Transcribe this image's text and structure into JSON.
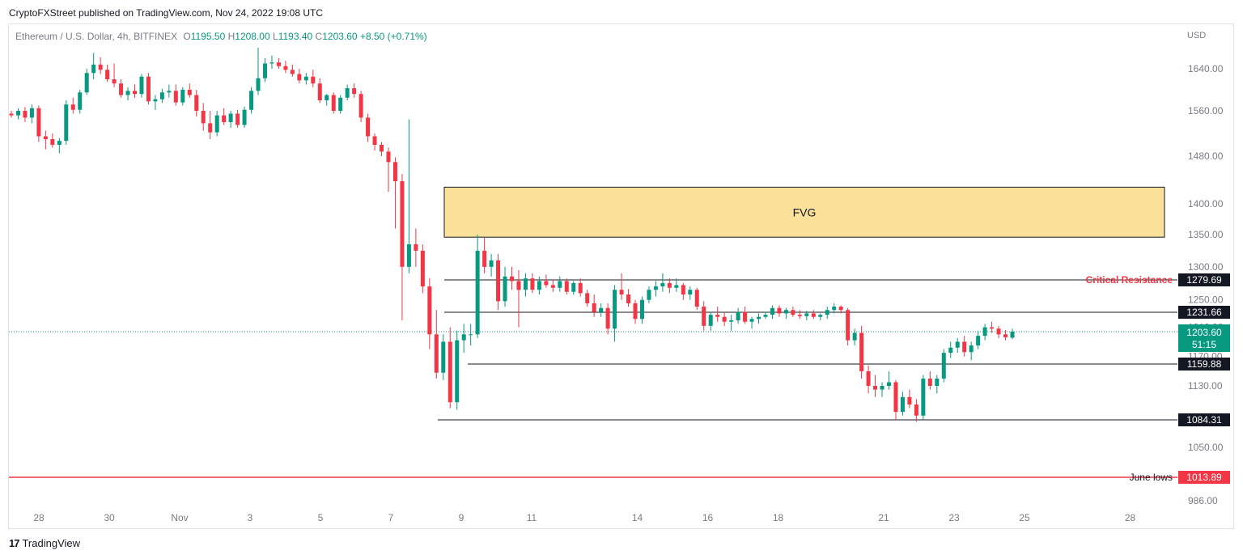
{
  "header": {
    "publisher": "CryptoFXStreet published on TradingView.com, Nov 24, 2022 19:08 UTC"
  },
  "legend": {
    "symbol": "Ethereum / U.S. Dollar, 4h, BITFINEX",
    "o_label": "O",
    "o": "1195.50",
    "h_label": "H",
    "h": "1208.00",
    "l_label": "L",
    "l": "1193.40",
    "c_label": "C",
    "c": "1203.60",
    "change": "+8.50 (+0.71%)"
  },
  "footer": {
    "logo_mark": "17",
    "brand": "TradingView"
  },
  "colors": {
    "up": "#089981",
    "down": "#f23645",
    "fvg_fill": "#fce19a",
    "line": "#131722",
    "june": "#f23645",
    "axis_text": "#787b86"
  },
  "chart_data": {
    "type": "candlestick",
    "currency_label": "USD",
    "y_ticks": [
      "1640.00",
      "1560.00",
      "1480.00",
      "1400.00",
      "1350.00",
      "1300.00",
      "1250.00",
      "1210.00",
      "1170.00",
      "1130.00",
      "1050.00",
      "986.00"
    ],
    "x_ticks": [
      {
        "label": "28",
        "day": 0
      },
      {
        "label": "30",
        "day": 2
      },
      {
        "label": "Nov",
        "day": 4
      },
      {
        "label": "3",
        "day": 6
      },
      {
        "label": "5",
        "day": 8
      },
      {
        "label": "7",
        "day": 10
      },
      {
        "label": "9",
        "day": 12
      },
      {
        "label": "11",
        "day": 14
      },
      {
        "label": "14",
        "day": 17
      },
      {
        "label": "16",
        "day": 19
      },
      {
        "label": "18",
        "day": 21
      },
      {
        "label": "21",
        "day": 24
      },
      {
        "label": "23",
        "day": 26
      },
      {
        "label": "25",
        "day": 28
      },
      {
        "label": "28",
        "day": 31
      }
    ],
    "fvg": {
      "label": "FVG",
      "top": 1428,
      "bottom": 1346
    },
    "levels": [
      {
        "value": "1279.69",
        "annotation": "Critical Resistance",
        "style": "black",
        "anno_color": "#f23645"
      },
      {
        "value": "1231.66",
        "annotation": "",
        "style": "black"
      },
      {
        "value": "1159.88",
        "annotation": "",
        "style": "black"
      },
      {
        "value": "1084.31",
        "annotation": "",
        "style": "black"
      },
      {
        "value": "1013.89",
        "annotation": "June lows",
        "style": "red",
        "anno_color": "#131722"
      }
    ],
    "current": {
      "price": "1203.60",
      "countdown": "51:15"
    },
    "candles": [
      [
        1555,
        1560,
        1548,
        1552
      ],
      [
        1552,
        1565,
        1545,
        1560
      ],
      [
        1560,
        1567,
        1540,
        1548
      ],
      [
        1548,
        1572,
        1538,
        1565
      ],
      [
        1565,
        1570,
        1505,
        1515
      ],
      [
        1515,
        1525,
        1492,
        1510
      ],
      [
        1510,
        1520,
        1495,
        1500
      ],
      [
        1500,
        1512,
        1485,
        1507
      ],
      [
        1507,
        1580,
        1500,
        1572
      ],
      [
        1572,
        1585,
        1555,
        1562
      ],
      [
        1562,
        1600,
        1555,
        1595
      ],
      [
        1595,
        1640,
        1590,
        1632
      ],
      [
        1632,
        1670,
        1620,
        1648
      ],
      [
        1648,
        1662,
        1630,
        1638
      ],
      [
        1638,
        1648,
        1615,
        1620
      ],
      [
        1620,
        1650,
        1605,
        1612
      ],
      [
        1612,
        1620,
        1585,
        1590
      ],
      [
        1590,
        1605,
        1580,
        1598
      ],
      [
        1598,
        1610,
        1585,
        1592
      ],
      [
        1592,
        1630,
        1585,
        1625
      ],
      [
        1625,
        1632,
        1572,
        1578
      ],
      [
        1578,
        1590,
        1562,
        1582
      ],
      [
        1582,
        1602,
        1575,
        1595
      ],
      [
        1595,
        1610,
        1585,
        1598
      ],
      [
        1598,
        1610,
        1570,
        1576
      ],
      [
        1576,
        1605,
        1570,
        1600
      ],
      [
        1600,
        1612,
        1585,
        1590
      ],
      [
        1590,
        1600,
        1550,
        1560
      ],
      [
        1560,
        1575,
        1525,
        1538
      ],
      [
        1538,
        1560,
        1510,
        1522
      ],
      [
        1522,
        1560,
        1515,
        1552
      ],
      [
        1552,
        1565,
        1535,
        1540
      ],
      [
        1540,
        1560,
        1530,
        1555
      ],
      [
        1555,
        1562,
        1530,
        1535
      ],
      [
        1535,
        1568,
        1530,
        1562
      ],
      [
        1562,
        1605,
        1555,
        1598
      ],
      [
        1598,
        1680,
        1590,
        1622
      ],
      [
        1622,
        1660,
        1615,
        1650
      ],
      [
        1650,
        1665,
        1640,
        1652
      ],
      [
        1652,
        1660,
        1640,
        1645
      ],
      [
        1645,
        1655,
        1632,
        1638
      ],
      [
        1638,
        1648,
        1625,
        1630
      ],
      [
        1630,
        1640,
        1612,
        1618
      ],
      [
        1618,
        1632,
        1610,
        1625
      ],
      [
        1625,
        1638,
        1605,
        1612
      ],
      [
        1612,
        1622,
        1575,
        1580
      ],
      [
        1580,
        1592,
        1570,
        1590
      ],
      [
        1590,
        1595,
        1555,
        1560
      ],
      [
        1560,
        1590,
        1555,
        1585
      ],
      [
        1585,
        1610,
        1580,
        1603
      ],
      [
        1603,
        1612,
        1585,
        1592
      ],
      [
        1592,
        1598,
        1540,
        1548
      ],
      [
        1548,
        1555,
        1505,
        1515
      ],
      [
        1515,
        1520,
        1490,
        1500
      ],
      [
        1500,
        1505,
        1480,
        1488
      ],
      [
        1488,
        1495,
        1420,
        1470
      ],
      [
        1470,
        1478,
        1360,
        1438
      ],
      [
        1438,
        1450,
        1220,
        1300
      ],
      [
        1300,
        1545,
        1290,
        1335
      ],
      [
        1335,
        1360,
        1300,
        1325
      ],
      [
        1325,
        1335,
        1260,
        1270
      ],
      [
        1270,
        1282,
        1180,
        1200
      ],
      [
        1200,
        1235,
        1140,
        1148
      ],
      [
        1148,
        1200,
        1138,
        1190
      ],
      [
        1190,
        1210,
        1100,
        1108
      ],
      [
        1108,
        1205,
        1098,
        1192
      ],
      [
        1192,
        1215,
        1175,
        1200
      ],
      [
        1200,
        1215,
        1185,
        1200
      ],
      [
        1200,
        1350,
        1195,
        1325
      ],
      [
        1325,
        1345,
        1290,
        1300
      ],
      [
        1300,
        1320,
        1285,
        1310
      ],
      [
        1310,
        1320,
        1235,
        1248
      ],
      [
        1248,
        1300,
        1240,
        1285
      ],
      [
        1285,
        1300,
        1265,
        1278
      ],
      [
        1278,
        1295,
        1210,
        1265
      ],
      [
        1265,
        1290,
        1255,
        1282
      ],
      [
        1282,
        1290,
        1260,
        1265
      ],
      [
        1265,
        1285,
        1258,
        1278
      ],
      [
        1278,
        1288,
        1268,
        1272
      ],
      [
        1272,
        1280,
        1262,
        1268
      ],
      [
        1268,
        1285,
        1262,
        1278
      ],
      [
        1278,
        1282,
        1258,
        1262
      ],
      [
        1262,
        1278,
        1258,
        1275
      ],
      [
        1275,
        1282,
        1255,
        1260
      ],
      [
        1260,
        1265,
        1240,
        1245
      ],
      [
        1245,
        1258,
        1225,
        1232
      ],
      [
        1232,
        1245,
        1225,
        1238
      ],
      [
        1238,
        1245,
        1200,
        1208
      ],
      [
        1208,
        1272,
        1190,
        1265
      ],
      [
        1265,
        1290,
        1250,
        1258
      ],
      [
        1258,
        1266,
        1240,
        1245
      ],
      [
        1245,
        1250,
        1215,
        1222
      ],
      [
        1222,
        1255,
        1215,
        1250
      ],
      [
        1250,
        1270,
        1245,
        1265
      ],
      [
        1265,
        1278,
        1255,
        1270
      ],
      [
        1270,
        1290,
        1262,
        1275
      ],
      [
        1275,
        1282,
        1260,
        1268
      ],
      [
        1268,
        1282,
        1262,
        1272
      ],
      [
        1272,
        1275,
        1250,
        1258
      ],
      [
        1258,
        1270,
        1250,
        1265
      ],
      [
        1265,
        1268,
        1235,
        1240
      ],
      [
        1240,
        1248,
        1205,
        1212
      ],
      [
        1212,
        1232,
        1205,
        1228
      ],
      [
        1228,
        1240,
        1218,
        1225
      ],
      [
        1225,
        1232,
        1212,
        1218
      ],
      [
        1218,
        1228,
        1205,
        1220
      ],
      [
        1220,
        1238,
        1215,
        1232
      ],
      [
        1232,
        1240,
        1215,
        1218
      ],
      [
        1218,
        1225,
        1208,
        1222
      ],
      [
        1222,
        1230,
        1215,
        1225
      ],
      [
        1225,
        1232,
        1222,
        1228
      ],
      [
        1228,
        1242,
        1222,
        1238
      ],
      [
        1238,
        1242,
        1225,
        1230
      ],
      [
        1230,
        1238,
        1222,
        1235
      ],
      [
        1235,
        1240,
        1225,
        1228
      ],
      [
        1228,
        1235,
        1222,
        1226
      ],
      [
        1226,
        1234,
        1220,
        1230
      ],
      [
        1230,
        1235,
        1222,
        1225
      ],
      [
        1225,
        1230,
        1220,
        1228
      ],
      [
        1228,
        1240,
        1222,
        1235
      ],
      [
        1235,
        1245,
        1230,
        1240
      ],
      [
        1240,
        1242,
        1230,
        1235
      ],
      [
        1235,
        1238,
        1185,
        1192
      ],
      [
        1192,
        1208,
        1185,
        1202
      ],
      [
        1202,
        1212,
        1140,
        1150
      ],
      [
        1150,
        1158,
        1120,
        1130
      ],
      [
        1130,
        1145,
        1115,
        1125
      ],
      [
        1125,
        1135,
        1115,
        1130
      ],
      [
        1130,
        1150,
        1125,
        1135
      ],
      [
        1135,
        1138,
        1085,
        1095
      ],
      [
        1095,
        1122,
        1090,
        1115
      ],
      [
        1115,
        1125,
        1100,
        1105
      ],
      [
        1105,
        1112,
        1082,
        1090
      ],
      [
        1090,
        1145,
        1085,
        1140
      ],
      [
        1140,
        1150,
        1125,
        1130
      ],
      [
        1130,
        1145,
        1120,
        1140
      ],
      [
        1140,
        1180,
        1135,
        1175
      ],
      [
        1175,
        1190,
        1168,
        1182
      ],
      [
        1182,
        1195,
        1175,
        1190
      ],
      [
        1190,
        1198,
        1170,
        1176
      ],
      [
        1176,
        1190,
        1165,
        1185
      ],
      [
        1185,
        1205,
        1180,
        1198
      ],
      [
        1198,
        1215,
        1192,
        1210
      ],
      [
        1210,
        1218,
        1202,
        1208
      ],
      [
        1208,
        1212,
        1195,
        1200
      ],
      [
        1200,
        1206,
        1192,
        1196
      ],
      [
        1195.5,
        1208,
        1193.4,
        1203.6
      ]
    ]
  }
}
